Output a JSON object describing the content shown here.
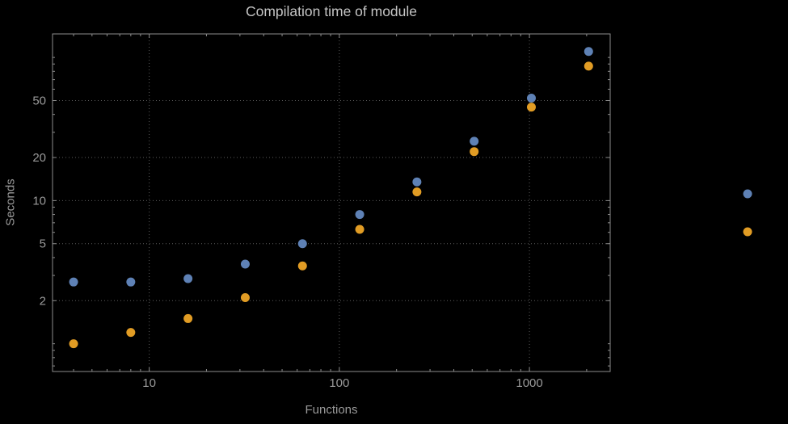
{
  "chart_data": {
    "type": "scatter",
    "title": "Compilation time of module",
    "xlabel": "Functions",
    "ylabel": "Seconds",
    "x_scale": "log",
    "y_scale": "log",
    "xlim": [
      3.1,
      2660
    ],
    "ylim": [
      0.64,
      146
    ],
    "x_ticks": [
      10,
      100,
      1000
    ],
    "y_ticks": [
      2,
      5,
      10,
      20,
      50
    ],
    "grid": true,
    "x": [
      4,
      8,
      16,
      32,
      64,
      128,
      256,
      512,
      1024,
      2048
    ],
    "series": [
      {
        "name": "series-blue",
        "color": "#5E81B5",
        "values": [
          2.7,
          2.7,
          2.85,
          3.6,
          5.0,
          8.0,
          13.5,
          26,
          52,
          110
        ]
      },
      {
        "name": "series-orange",
        "color": "#E19C24",
        "values": [
          1.0,
          1.2,
          1.5,
          2.1,
          3.5,
          6.3,
          11.5,
          22,
          45,
          87
        ]
      }
    ],
    "legend_markers": [
      {
        "name": "legend-marker-blue",
        "color": "#5E81B5"
      },
      {
        "name": "legend-marker-orange",
        "color": "#E19C24"
      }
    ]
  }
}
